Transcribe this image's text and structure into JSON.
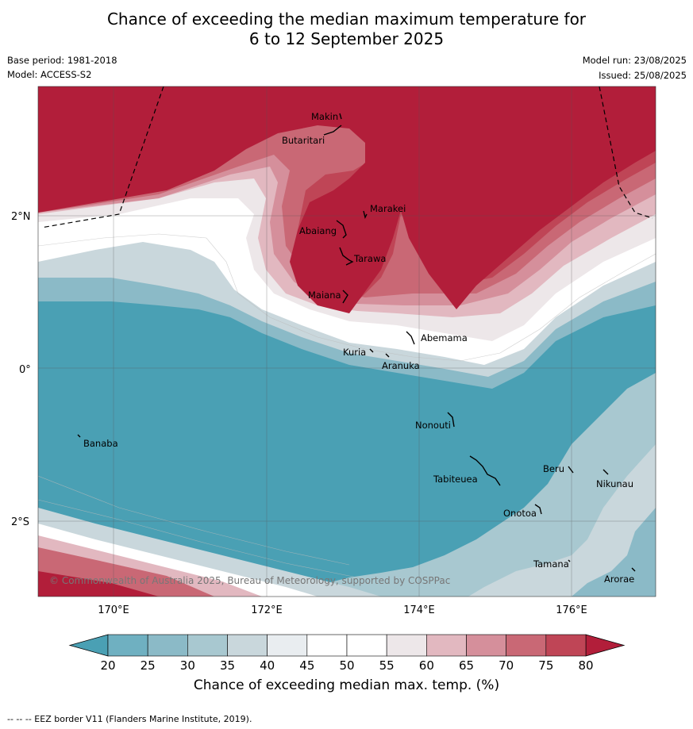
{
  "title_line1": "Chance of exceeding the median maximum temperature for",
  "title_line2": "6 to 12 September 2025",
  "base_period": "Base period: 1981-2018",
  "model": "Model: ACCESS-S2",
  "model_run": "Model run: 23/08/2025",
  "issued": "Issued: 25/08/2025",
  "lat_labels": [
    "2°N",
    "0°",
    "2°S"
  ],
  "lon_labels": [
    "170°E",
    "172°E",
    "174°E",
    "176°E"
  ],
  "places": [
    "Makin",
    "Butaritari",
    "Marakei",
    "Abaiang",
    "Tarawa",
    "Maiana",
    "Abemama",
    "Kuria",
    "Aranuka",
    "Nonouti",
    "Banaba",
    "Beru",
    "Tabiteuea",
    "Nikunau",
    "Onotoa",
    "Tamana",
    "Arorae"
  ],
  "copyright": "© Commonwealth of Australia 2025, Bureau of Meteorology, supported by COSPPac",
  "colorbar": {
    "ticks": [
      "20",
      "25",
      "30",
      "35",
      "40",
      "45",
      "50",
      "55",
      "60",
      "65",
      "70",
      "75",
      "80"
    ],
    "colors": [
      "#4aa0b4",
      "#6fb0c1",
      "#8bbac7",
      "#a8c8d0",
      "#c9d7dc",
      "#e9edf0",
      "#ffffff",
      "#ffffff",
      "#ede7e9",
      "#e2b8c0",
      "#d58f9b",
      "#c96875",
      "#bf4556"
    ],
    "low_color": "#4aa0b4",
    "high_color": "#b21e3a",
    "title": "Chance of exceeding median max. temp. (%)"
  },
  "footer": "--  --  -- EEZ border V11 (Flanders Marine Institute, 2019)."
}
